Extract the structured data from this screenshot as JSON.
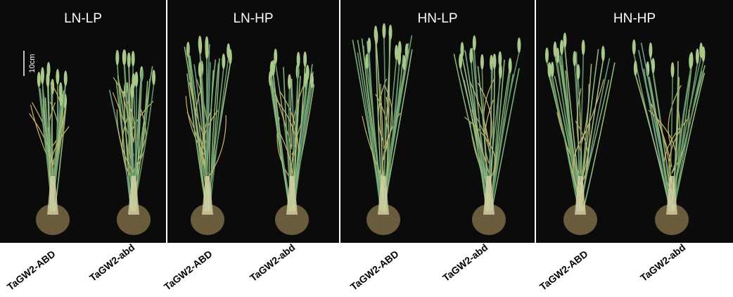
{
  "scale_bar": "10cm",
  "panels": [
    {
      "title": "LN-LP",
      "plants": [
        "TaGW2-ABD",
        "TaGW2-abd"
      ]
    },
    {
      "title": "LN-HP",
      "plants": [
        "TaGW2-ABD",
        "TaGW2-abd"
      ]
    },
    {
      "title": "HN-LP",
      "plants": [
        "TaGW2-ABD",
        "TaGW2-abd"
      ]
    },
    {
      "title": "HN-HP",
      "plants": [
        "TaGW2-ABD",
        "TaGW2-abd"
      ]
    }
  ]
}
